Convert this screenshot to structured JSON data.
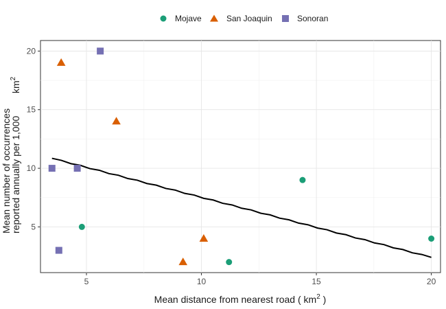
{
  "chart_data": {
    "type": "scatter",
    "title": "",
    "xlabel": "Mean distance from nearest road ( km",
    "xlabel_superscript": "2",
    "xlabel_suffix": " )",
    "ylabel_line1": "Mean number of occurrences",
    "ylabel_line2": "reported annually per 1,000",
    "ylabel_unit": "km",
    "ylabel_superscript": "2",
    "xlim": [
      3.0,
      20.4
    ],
    "ylim": [
      1.1,
      20.9
    ],
    "x_ticks": [
      5,
      10,
      15,
      20
    ],
    "y_ticks": [
      5,
      10,
      15,
      20
    ],
    "grid": true,
    "legend_position": "top",
    "series": [
      {
        "name": "Mojave",
        "marker": "circle",
        "color": "#1b9e77",
        "points": [
          [
            4.8,
            5.0
          ],
          [
            11.2,
            2.0
          ],
          [
            14.4,
            9.0
          ],
          [
            20.0,
            4.0
          ]
        ]
      },
      {
        "name": "San Joaquin",
        "marker": "triangle",
        "color": "#d95f02",
        "points": [
          [
            3.9,
            19.0
          ],
          [
            6.3,
            14.0
          ],
          [
            9.2,
            2.0
          ],
          [
            10.1,
            4.0
          ]
        ]
      },
      {
        "name": "Sonoran",
        "marker": "square",
        "color": "#7570b3",
        "points": [
          [
            3.5,
            10.0
          ],
          [
            3.8,
            3.0
          ],
          [
            4.6,
            10.0
          ],
          [
            5.6,
            20.0
          ]
        ]
      }
    ],
    "trendline": {
      "color": "#000000",
      "x": [
        3.5,
        20.0
      ],
      "y": [
        10.85,
        2.4
      ]
    }
  }
}
